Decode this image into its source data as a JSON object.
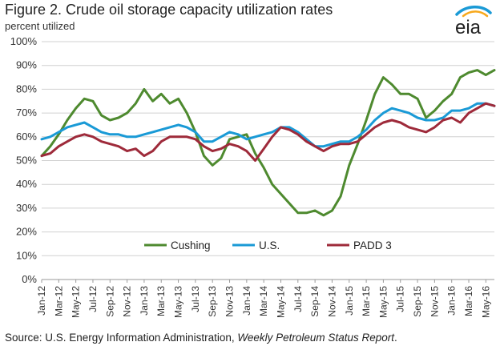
{
  "header": {
    "title": "Figure 2. Crude oil storage capacity utilization rates",
    "subtitle": "percent utilized"
  },
  "logo": {
    "text": "eia",
    "icon": "eia-logo-icon"
  },
  "source": {
    "prefix": "Source: U.S. Energy Information Administration, ",
    "italic": "Weekly Petroleum Status Report",
    "suffix": "."
  },
  "chart_data": {
    "type": "line",
    "title": "Figure 2. Crude oil storage capacity utilization rates",
    "ylabel": "percent utilized",
    "ylim": [
      0,
      100
    ],
    "y_ticks": [
      "0%",
      "10%",
      "20%",
      "30%",
      "40%",
      "50%",
      "60%",
      "70%",
      "80%",
      "90%",
      "100%"
    ],
    "x_tick_labels": [
      "Jan-12",
      "Mar-12",
      "May-12",
      "Jul-12",
      "Sep-12",
      "Nov-12",
      "Jan-13",
      "Mar-13",
      "May-13",
      "Jul-13",
      "Sep-13",
      "Nov-13",
      "Jan-14",
      "Mar-14",
      "May-14",
      "Jul-14",
      "Sep-14",
      "Nov-14",
      "Jan-15",
      "Mar-15",
      "May-15",
      "Jul-15",
      "Sep-15",
      "Nov-15",
      "Jan-16",
      "Mar-16",
      "May-16"
    ],
    "x": [
      "Jan-12",
      "Feb-12",
      "Mar-12",
      "Apr-12",
      "May-12",
      "Jun-12",
      "Jul-12",
      "Aug-12",
      "Sep-12",
      "Oct-12",
      "Nov-12",
      "Dec-12",
      "Jan-13",
      "Feb-13",
      "Mar-13",
      "Apr-13",
      "May-13",
      "Jun-13",
      "Jul-13",
      "Aug-13",
      "Sep-13",
      "Oct-13",
      "Nov-13",
      "Dec-13",
      "Jan-14",
      "Feb-14",
      "Mar-14",
      "Apr-14",
      "May-14",
      "Jun-14",
      "Jul-14",
      "Aug-14",
      "Sep-14",
      "Oct-14",
      "Nov-14",
      "Dec-14",
      "Jan-15",
      "Feb-15",
      "Mar-15",
      "Apr-15",
      "May-15",
      "Jun-15",
      "Jul-15",
      "Aug-15",
      "Sep-15",
      "Oct-15",
      "Nov-15",
      "Dec-15",
      "Jan-16",
      "Feb-16",
      "Mar-16",
      "Apr-16",
      "May-16",
      "Jun-16"
    ],
    "grid": true,
    "legend_position": "bottom",
    "series": [
      {
        "name": "Cushing",
        "color": "#4e8a2f",
        "values": [
          52,
          56,
          61,
          67,
          72,
          76,
          75,
          69,
          67,
          68,
          70,
          74,
          80,
          75,
          78,
          74,
          76,
          70,
          62,
          52,
          48,
          51,
          59,
          60,
          61,
          53,
          47,
          40,
          36,
          32,
          28,
          28,
          29,
          27,
          29,
          35,
          48,
          57,
          67,
          78,
          85,
          82,
          78,
          78,
          76,
          68,
          71,
          75,
          78,
          85,
          87,
          88,
          86,
          88
        ]
      },
      {
        "name": "U.S.",
        "color": "#1a9ad6",
        "values": [
          59,
          60,
          62,
          64,
          65,
          66,
          64,
          62,
          61,
          61,
          60,
          60,
          61,
          62,
          63,
          64,
          65,
          64,
          62,
          58,
          58,
          60,
          62,
          61,
          59,
          60,
          61,
          62,
          64,
          64,
          62,
          59,
          56,
          56,
          57,
          58,
          58,
          60,
          63,
          67,
          70,
          72,
          71,
          70,
          68,
          67,
          67,
          68,
          71,
          71,
          72,
          74,
          74,
          73
        ]
      },
      {
        "name": "PADD 3",
        "color": "#9e2a3a",
        "values": [
          52,
          53,
          56,
          58,
          60,
          61,
          60,
          58,
          57,
          56,
          54,
          55,
          52,
          54,
          58,
          60,
          60,
          60,
          59,
          56,
          54,
          55,
          57,
          56,
          54,
          50,
          55,
          60,
          64,
          63,
          61,
          58,
          56,
          54,
          56,
          57,
          57,
          58,
          61,
          64,
          66,
          67,
          66,
          64,
          63,
          62,
          64,
          67,
          68,
          66,
          70,
          72,
          74,
          73
        ]
      }
    ]
  }
}
